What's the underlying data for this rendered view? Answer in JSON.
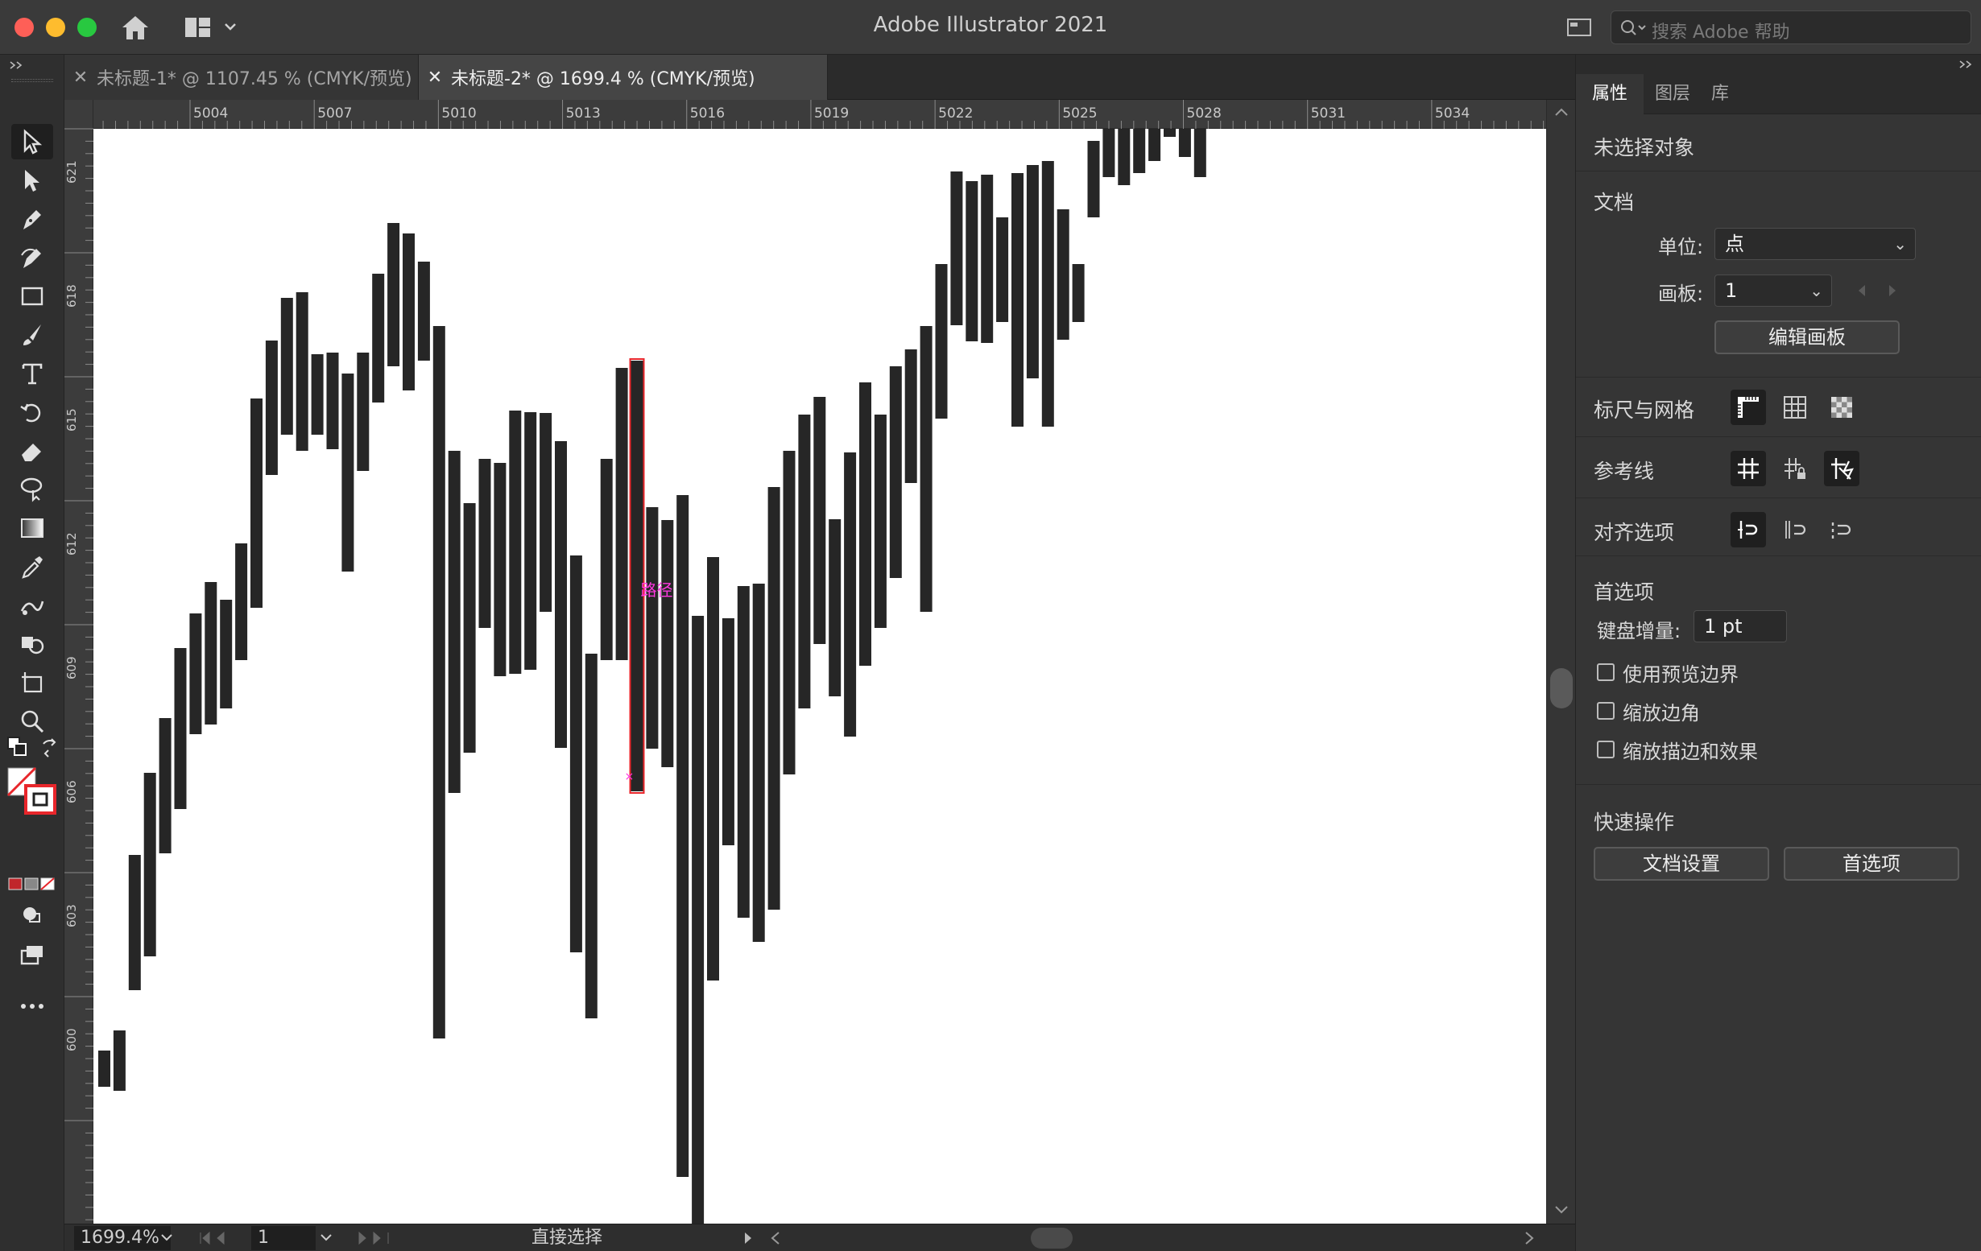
{
  "app": {
    "title": "Adobe Illustrator 2021",
    "search_placeholder": "搜索 Adobe 帮助",
    "colors": {
      "accent": "#ffffff",
      "selection": "#e8262b",
      "path_label": "#ff38e0",
      "chrome": "#323232"
    }
  },
  "toolbar_icons": [
    "selection-tool-icon",
    "direct-selection-tool-icon",
    "pen-tool-icon",
    "curvature-tool-icon",
    "rectangle-tool-icon",
    "paintbrush-tool-icon",
    "type-tool-icon",
    "rotate-tool-icon",
    "eraser-tool-icon",
    "lasso-tool-icon",
    "gradient-tool-icon",
    "eyedropper-tool-icon",
    "blend-tool-icon",
    "shape-builder-tool-icon",
    "artboard-tool-icon",
    "zoom-tool-icon"
  ],
  "tabs": [
    {
      "label": "未标题-1* @ 1107.45 % (CMYK/预览)",
      "active": false
    },
    {
      "label": "未标题-2* @ 1699.4 % (CMYK/预览)",
      "active": true
    }
  ],
  "ruler": {
    "top_labels": [
      "5004",
      "5007",
      "5010",
      "5013",
      "5016",
      "5019",
      "5022",
      "5025",
      "5028",
      "5031",
      "5034"
    ],
    "left_labels": [
      "621",
      "618",
      "615",
      "612",
      "609",
      "606",
      "603",
      "600"
    ]
  },
  "canvas": {
    "path_hint": "路径",
    "bars": [
      [
        1305,
        1350
      ],
      [
        1280,
        1355
      ],
      [
        1062,
        1230
      ],
      [
        960,
        1188
      ],
      [
        892,
        1060
      ],
      [
        805,
        1005
      ],
      [
        762,
        912
      ],
      [
        723,
        900
      ],
      [
        745,
        880
      ],
      [
        675,
        820
      ],
      [
        495,
        755
      ],
      [
        423,
        590
      ],
      [
        370,
        540
      ],
      [
        363,
        560
      ],
      [
        440,
        540
      ],
      [
        438,
        558
      ],
      [
        464,
        710
      ],
      [
        438,
        585
      ],
      [
        340,
        500
      ],
      [
        277,
        455
      ],
      [
        290,
        485
      ],
      [
        325,
        448
      ],
      [
        405,
        1290
      ],
      [
        560,
        985
      ],
      [
        625,
        935
      ],
      [
        570,
        780
      ],
      [
        575,
        840
      ],
      [
        510,
        837
      ],
      [
        512,
        832
      ],
      [
        513,
        760
      ],
      [
        548,
        929
      ],
      [
        690,
        1183
      ],
      [
        812,
        1265
      ],
      [
        570,
        820
      ],
      [
        457,
        820
      ],
      [
        448,
        983
      ],
      [
        630,
        930
      ],
      [
        646,
        953
      ],
      [
        615,
        1462
      ],
      [
        765,
        1560
      ],
      [
        692,
        1218
      ],
      [
        768,
        1050
      ],
      [
        728,
        1140
      ],
      [
        725,
        1170
      ],
      [
        605,
        1130
      ],
      [
        560,
        962
      ],
      [
        515,
        880
      ],
      [
        493,
        800
      ],
      [
        645,
        865
      ],
      [
        562,
        915
      ],
      [
        475,
        827
      ],
      [
        515,
        780
      ],
      [
        455,
        718
      ],
      [
        434,
        600
      ],
      [
        405,
        760
      ],
      [
        328,
        520
      ],
      [
        213,
        404
      ],
      [
        225,
        424
      ],
      [
        217,
        426
      ],
      [
        270,
        400
      ],
      [
        215,
        530
      ],
      [
        205,
        470
      ],
      [
        200,
        530
      ],
      [
        260,
        422
      ],
      [
        328,
        400
      ],
      [
        175,
        270
      ],
      [
        140,
        220
      ],
      [
        156,
        230
      ],
      [
        114,
        215
      ],
      [
        143,
        200
      ],
      [
        68,
        170
      ],
      [
        80,
        195
      ],
      [
        105,
        220
      ]
    ]
  },
  "status": {
    "zoom": "1699.4%",
    "artboard": "1",
    "tool": "直接选择"
  },
  "panel": {
    "tabs": [
      "属性",
      "图层",
      "库"
    ],
    "no_selection": "未选择对象",
    "document": {
      "title": "文档",
      "unit_label": "单位:",
      "unit_value": "点",
      "artboard_label": "画板:",
      "artboard_value": "1",
      "edit_artboard": "编辑画板"
    },
    "rulers_grid": "标尺与网格",
    "guides": "参考线",
    "align_options": "对齐选项",
    "preferences": {
      "title": "首选项",
      "key_increment_label": "键盘增量:",
      "key_increment_value": "1 pt",
      "use_preview_bounds": "使用预览边界",
      "scale_corners": "缩放边角",
      "scale_strokes": "缩放描边和效果"
    },
    "quick_actions": {
      "title": "快速操作",
      "doc_setup": "文档设置",
      "preferences_btn": "首选项"
    }
  }
}
